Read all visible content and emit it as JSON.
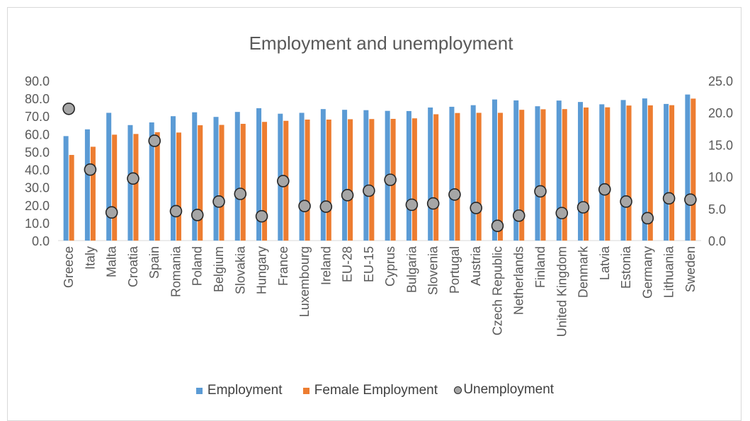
{
  "chart_data": {
    "type": "bar",
    "title": "Employment and unemployment",
    "categories": [
      "Greece",
      "Italy",
      "Malta",
      "Croatia",
      "Spain",
      "Romania",
      "Poland",
      "Belgium",
      "Slovakia",
      "Hungary",
      "France",
      "Luxembourg",
      "Ireland",
      "EU-28",
      "EU-15",
      "Cyprus",
      "Bulgaria",
      "Slovenia",
      "Portugal",
      "Austria",
      "Czech Republic",
      "Netherlands",
      "Finland",
      "United Kingdom",
      "Denmark",
      "Latvia",
      "Estonia",
      "Germany",
      "Lithuania",
      "Sweden"
    ],
    "series": [
      {
        "name": "Employment",
        "type": "bar",
        "axis": "left",
        "color": "#5b9bd5",
        "values": [
          58.8,
          62.6,
          71.9,
          65.0,
          66.5,
          70.0,
          72.2,
          69.6,
          72.4,
          74.5,
          71.4,
          71.9,
          74.0,
          73.6,
          73.4,
          73.0,
          72.9,
          74.9,
          75.3,
          76.2,
          79.4,
          78.9,
          75.6,
          78.8,
          78.0,
          76.7,
          79.1,
          80.0,
          76.9,
          82.2
        ]
      },
      {
        "name": "Female Employment",
        "type": "bar",
        "axis": "left",
        "color": "#ed7d31",
        "values": [
          48.2,
          52.8,
          59.6,
          60.0,
          61.0,
          60.8,
          64.9,
          65.1,
          65.7,
          66.8,
          67.4,
          68.1,
          68.1,
          68.3,
          68.4,
          68.5,
          68.8,
          71.1,
          71.8,
          71.9,
          71.9,
          73.6,
          73.9,
          74.0,
          74.9,
          75.0,
          76.0,
          76.1,
          76.2,
          79.9
        ]
      },
      {
        "name": "Unemployment",
        "type": "scatter",
        "axis": "right",
        "color": "#a6a6a6",
        "values": [
          20.6,
          11.1,
          4.4,
          9.7,
          15.6,
          4.6,
          4.0,
          6.1,
          7.3,
          3.8,
          9.3,
          5.4,
          5.3,
          7.1,
          7.8,
          9.5,
          5.6,
          5.8,
          7.2,
          5.1,
          2.3,
          3.9,
          7.7,
          4.3,
          5.2,
          8.0,
          6.1,
          3.5,
          6.6,
          6.4
        ]
      }
    ],
    "y_left": {
      "min": 0,
      "max": 90,
      "step": 10,
      "decimals": 1
    },
    "y_right": {
      "min": 0,
      "max": 25,
      "step": 5,
      "decimals": 1
    },
    "legend_position": "bottom",
    "grid": false
  }
}
